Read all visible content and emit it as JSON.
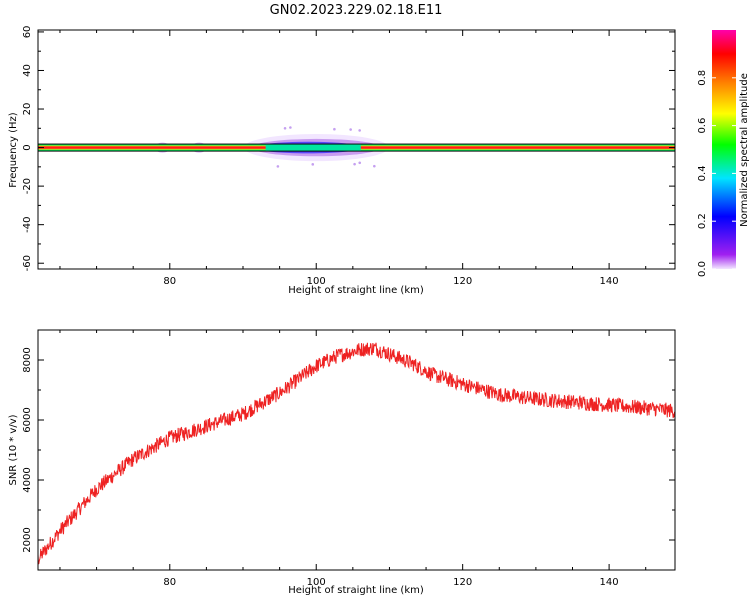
{
  "title": "GN02.2023.229.02.18.E11",
  "chart_data": [
    {
      "type": "heatmap",
      "name": "spectrogram",
      "xlabel": "Height of straight line (km)",
      "ylabel": "Frequency (Hz)",
      "xlim": [
        62,
        149
      ],
      "ylim": [
        -63,
        61
      ],
      "xticks": [
        80,
        100,
        120,
        140
      ],
      "yticks": [
        -60,
        -40,
        -20,
        0,
        20,
        40,
        60
      ],
      "centerline_frequency": 0,
      "spread_region": {
        "x_start": 92,
        "x_end": 108,
        "frequency_halfwidth": 6
      },
      "colorbar": {
        "label": "Normalized spectral amplitude",
        "range": [
          0,
          1
        ],
        "ticks": [
          0.0,
          0.2,
          0.4,
          0.6,
          0.8
        ],
        "colors": [
          "#f2e6ff",
          "#a020f0",
          "#0000ff",
          "#00e5ff",
          "#00ff00",
          "#ffff00",
          "#ff8000",
          "#ff0000",
          "#ff00aa"
        ]
      }
    },
    {
      "type": "line",
      "name": "snr",
      "xlabel": "Height of straight line (km)",
      "ylabel": "SNR (10 * v/v)",
      "xlim": [
        62,
        149
      ],
      "ylim": [
        1000,
        9000
      ],
      "xticks": [
        80,
        100,
        120,
        140
      ],
      "yticks": [
        2000,
        4000,
        6000,
        8000
      ],
      "color": "#ee2222",
      "trend": {
        "x": [
          62,
          65,
          70,
          75,
          80,
          85,
          90,
          95,
          100,
          103,
          106,
          108,
          110,
          113,
          116,
          120,
          125,
          130,
          135,
          140,
          145,
          149
        ],
        "y": [
          1350,
          2300,
          3700,
          4700,
          5400,
          5800,
          6200,
          6900,
          7800,
          8150,
          8350,
          8400,
          8200,
          7900,
          7500,
          7200,
          6850,
          6700,
          6600,
          6500,
          6400,
          6300
        ]
      },
      "noise_amplitude": 250
    }
  ]
}
